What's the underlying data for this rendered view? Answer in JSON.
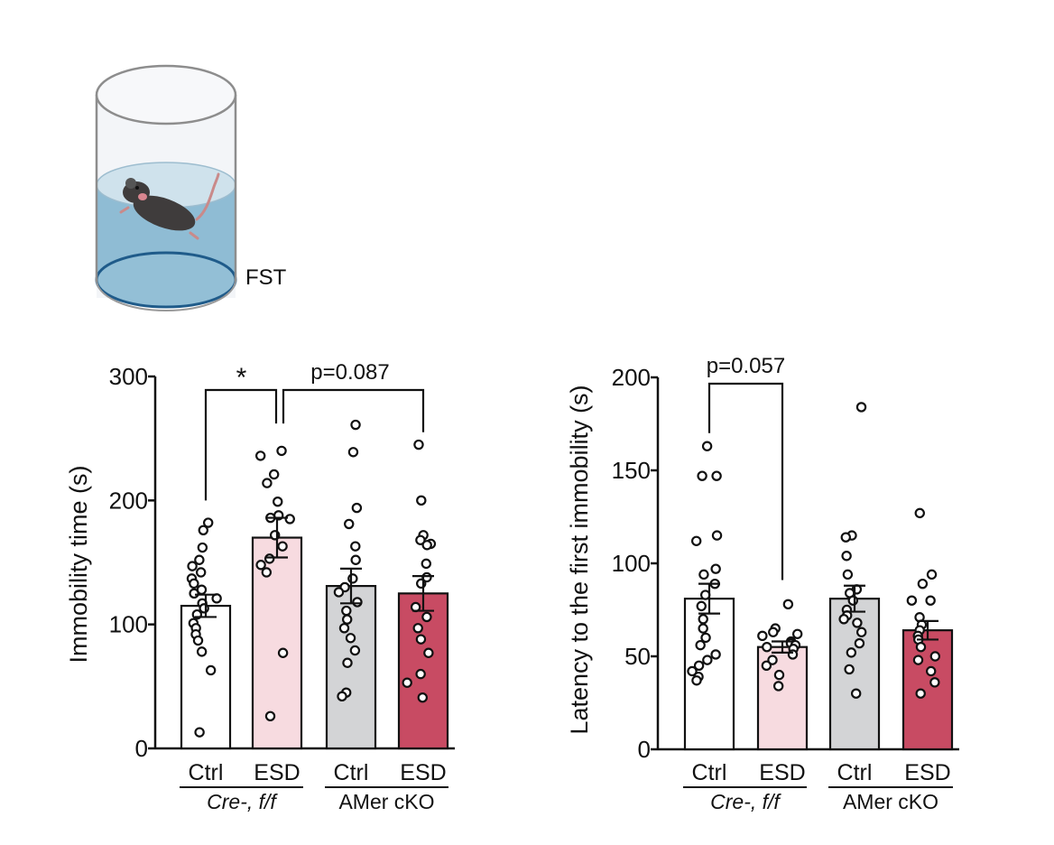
{
  "illustration": {
    "label": "FST",
    "water_color": "#8fbcd4",
    "rim_color": "#1f5b8a",
    "mouse_color": "#3f3c3c"
  },
  "colors": {
    "ctrl_fill": "#ffffff",
    "esd_cre_fill": "#f7dbe0",
    "ctrl_cko_fill": "#d3d4d6",
    "esd_cko_fill": "#c84b63",
    "stroke": "#111111"
  },
  "chart_data": [
    {
      "type": "bar",
      "ylabel": "Immobility time (s)",
      "ylim": [
        0,
        300
      ],
      "yticks": [
        "0",
        "100",
        "200",
        "300"
      ],
      "categories": [
        "Ctrl",
        "ESD",
        "Ctrl",
        "ESD"
      ],
      "groups": [
        {
          "label": "Cre-, f/f",
          "italic": true
        },
        {
          "label": "AMer cKO",
          "italic": false
        }
      ],
      "means": [
        115,
        170,
        131,
        125
      ],
      "sem": [
        9,
        16,
        14,
        14
      ],
      "points": [
        [
          182,
          176,
          162,
          152,
          147,
          142,
          137,
          133,
          128,
          125,
          121,
          117,
          113,
          108,
          101,
          97,
          92,
          87,
          78,
          63,
          13
        ],
        [
          240,
          236,
          221,
          214,
          199,
          188,
          186,
          185,
          172,
          163,
          153,
          148,
          142,
          77,
          26
        ],
        [
          261,
          239,
          194,
          181,
          163,
          152,
          137,
          130,
          126,
          118,
          111,
          104,
          97,
          89,
          79,
          69,
          45,
          42
        ],
        [
          245,
          200,
          172,
          168,
          165,
          164,
          149,
          138,
          133,
          114,
          106,
          97,
          88,
          77,
          60,
          53,
          41
        ]
      ],
      "significance": [
        {
          "from": 0,
          "to": 1,
          "label": "*"
        },
        {
          "from": 1,
          "to": 3,
          "label": "p=0.087"
        }
      ]
    },
    {
      "type": "bar",
      "ylabel": "Latency to the first immobility (s)",
      "ylim": [
        0,
        200
      ],
      "yticks": [
        "0",
        "50",
        "100",
        "150",
        "200"
      ],
      "categories": [
        "Ctrl",
        "ESD",
        "Ctrl",
        "ESD"
      ],
      "groups": [
        {
          "label": "Cre-, f/f",
          "italic": true
        },
        {
          "label": "AMer cKO",
          "italic": false
        }
      ],
      "means": [
        81,
        55,
        81,
        64
      ],
      "sem": [
        8,
        3,
        7,
        5
      ],
      "points": [
        [
          163,
          147,
          147,
          115,
          112,
          97,
          94,
          89,
          83,
          77,
          70,
          65,
          60,
          56,
          51,
          48,
          45,
          42,
          39,
          37
        ],
        [
          78,
          65,
          63,
          62,
          61,
          58,
          57,
          56,
          55,
          54,
          51,
          48,
          45,
          40,
          34
        ],
        [
          184,
          115,
          114,
          104,
          94,
          86,
          84,
          80,
          75,
          72,
          70,
          68,
          63,
          57,
          52,
          43,
          30
        ],
        [
          127,
          94,
          89,
          80,
          80,
          71,
          67,
          64,
          61,
          59,
          55,
          50,
          48,
          42,
          36,
          30
        ]
      ],
      "significance": [
        {
          "from": 0,
          "to": 1,
          "label": "p=0.057"
        }
      ]
    }
  ]
}
